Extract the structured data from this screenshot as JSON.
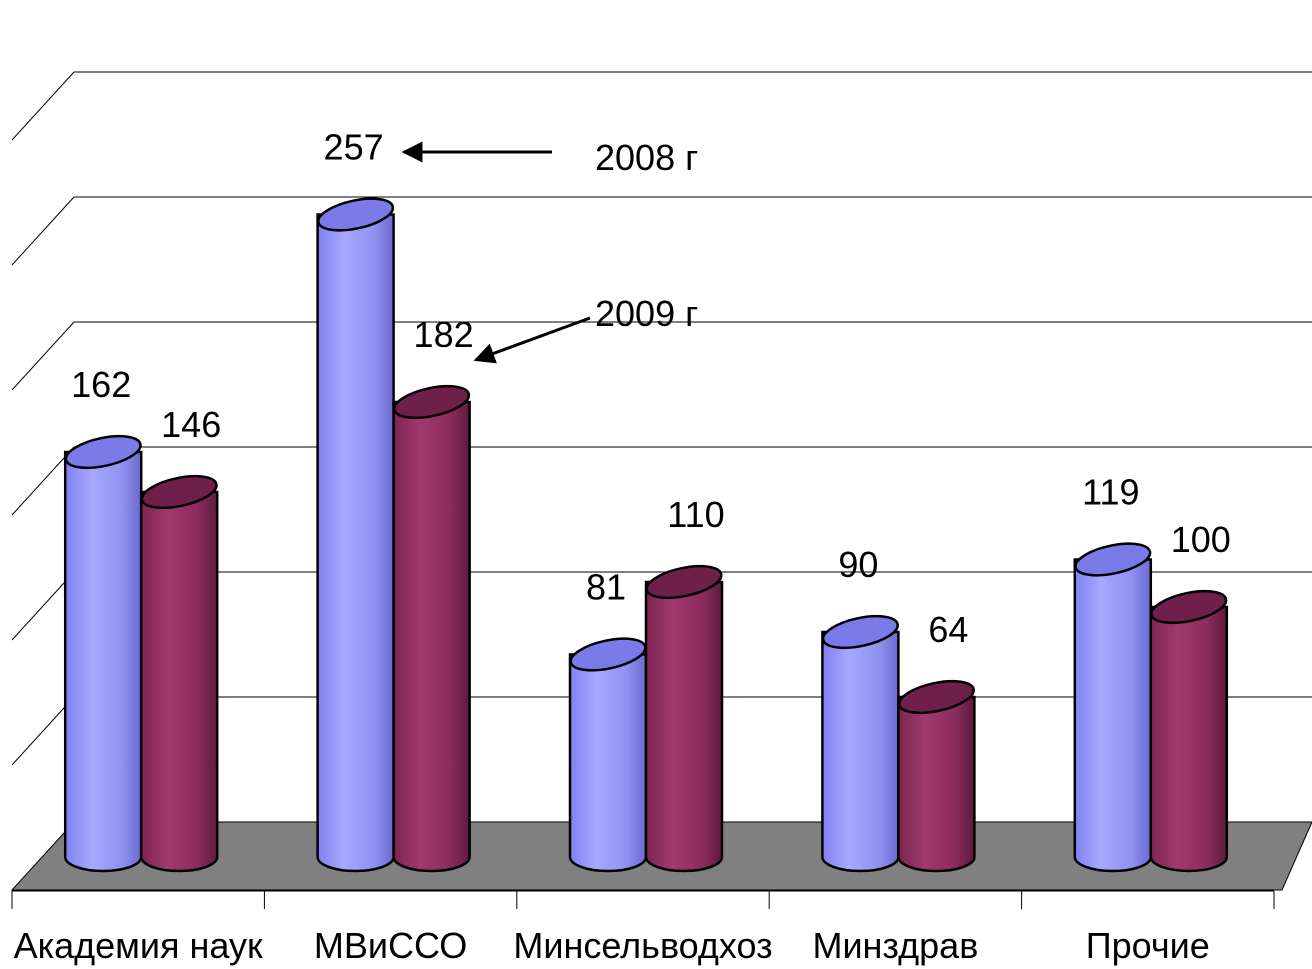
{
  "chart_data": {
    "type": "bar",
    "style": "3d-cylinder",
    "title": "",
    "xlabel": "",
    "ylabel": "",
    "categories": [
      "Академия наук",
      "МВиССО",
      "Минсельводхоз",
      "Минздрав",
      "Прочие"
    ],
    "series": [
      {
        "name": "2008 г",
        "values": [
          162,
          257,
          81,
          90,
          119
        ],
        "color": "#9999ff"
      },
      {
        "name": "2009 г",
        "values": [
          146,
          182,
          110,
          64,
          100
        ],
        "color": "#993366"
      }
    ],
    "ylim": [
      0,
      300
    ],
    "grid": true,
    "floor_color": "#808080",
    "legend": "annotation arrows pointing at the tallest pair"
  }
}
